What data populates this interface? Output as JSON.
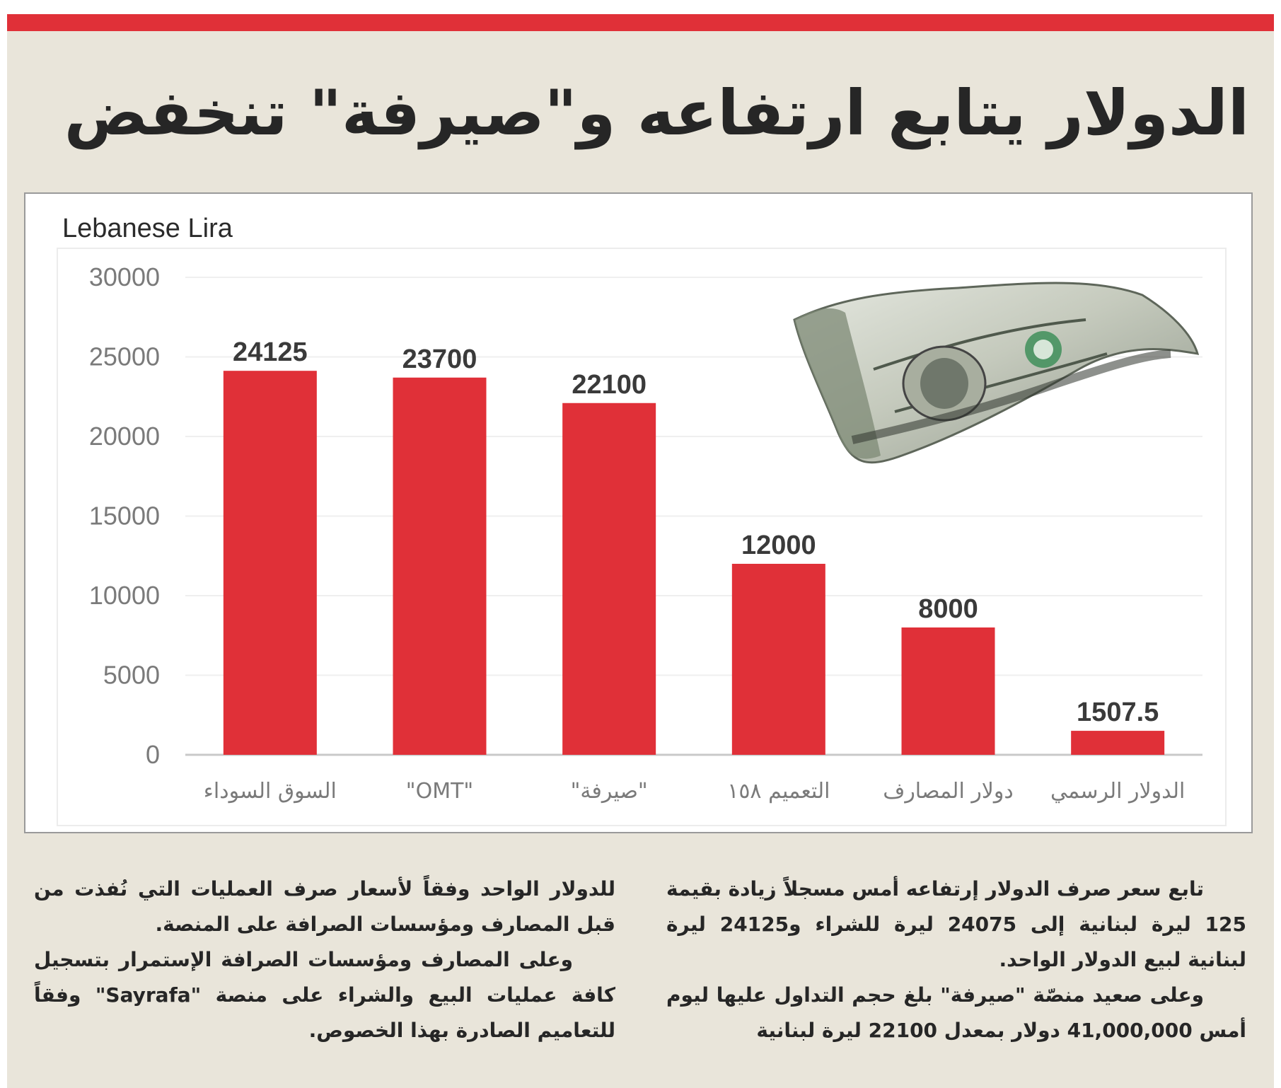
{
  "headline": "الدولار يتابع ارتفاعه و\"صيرفة\" تنخفض",
  "colors": {
    "accent": "#e03038",
    "bar": "#e03038",
    "page_background": "#e9e5da",
    "text": "#262626"
  },
  "decoration": {
    "image": "one-dollar-banknote"
  },
  "chart_data": {
    "type": "bar",
    "title": "Lebanese Lira",
    "xlabel": "",
    "ylabel": "",
    "categories": [
      "السوق السوداء",
      "\"OMT\"",
      "\"صيرفة\"",
      "التعميم ١٥٨",
      "دولار المصارف",
      "الدولار الرسمي"
    ],
    "values": [
      24125,
      23700,
      22100,
      12000,
      8000,
      1507.5
    ],
    "value_labels": [
      "24125",
      "23700",
      "22100",
      "12000",
      "8000",
      "1507.5"
    ],
    "ylim": [
      0,
      30000
    ],
    "yticks": [
      "0",
      "5000",
      "10000",
      "15000",
      "20000",
      "25000",
      "30000"
    ],
    "grid": true,
    "legend": "none"
  },
  "article": {
    "right_column": [
      "تابع سعر صرف الدولار إرتفاعه أمس مسجلاً زيادة بقيمة 125 ليرة لبنانية إلى 24075 ليرة للشراء و24125 ليرة لبنانية لبيع الدولار الواحد.",
      "وعلى صعيد منصّة \"صيرفة\" بلغ حجم التداول عليها ليوم أمس 41,000,000 دولار بمعدل 22100 ليرة لبنانية"
    ],
    "left_column": [
      "للدولار الواحد وفقاً لأسعار صرف العمليات التي نُفذت من قبل المصارف ومؤسسات الصرافة على المنصة.",
      "وعلى المصارف ومؤسسات الصرافة الإستمرار بتسجيل كافة عمليات البيع والشراء على منصة \"Sayrafa\" وفقاً للتعاميم الصادرة بهذا الخصوص."
    ]
  }
}
